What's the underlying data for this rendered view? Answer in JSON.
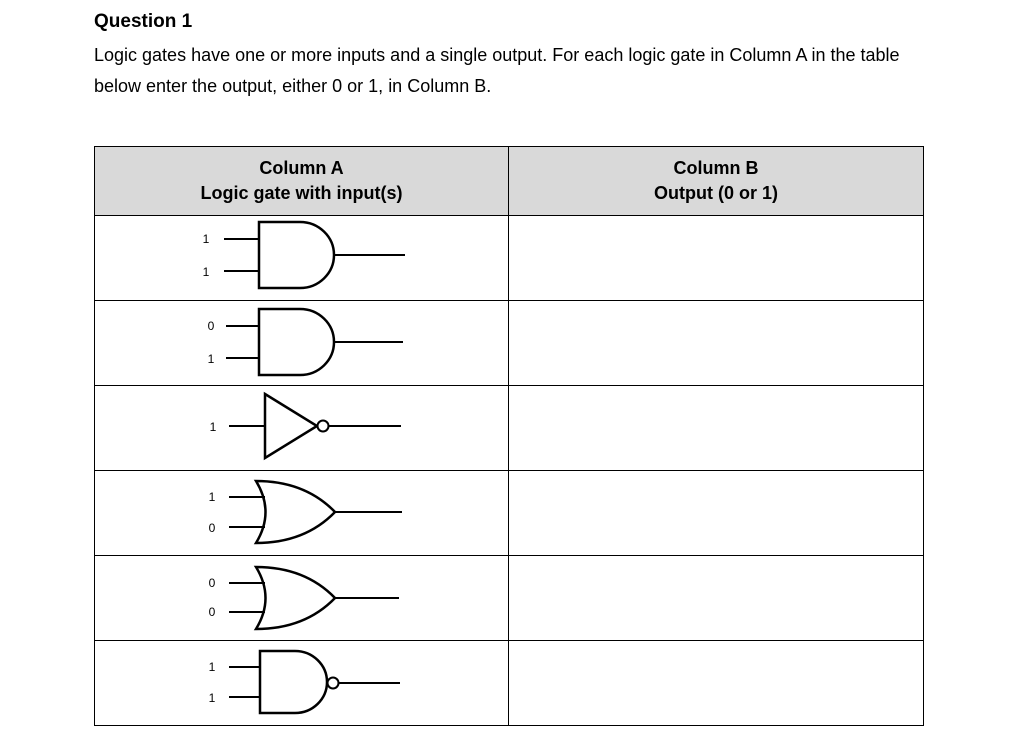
{
  "question": {
    "title": "Question 1",
    "text": "Logic gates have one or more inputs and a single output. For each logic gate in Column A in the table below enter the output, either 0 or 1, in Column B."
  },
  "table": {
    "column_a": {
      "title": "Column A",
      "subtitle": "Logic gate with input(s)"
    },
    "column_b": {
      "title": "Column B",
      "subtitle": "Output (0 or 1)"
    },
    "rows": [
      {
        "gate": "and-gate",
        "inputs": [
          "1",
          "1"
        ],
        "output": ""
      },
      {
        "gate": "and-gate",
        "inputs": [
          "0",
          "1"
        ],
        "output": ""
      },
      {
        "gate": "not-gate",
        "inputs": [
          "1"
        ],
        "output": ""
      },
      {
        "gate": "or-gate",
        "inputs": [
          "1",
          "0"
        ],
        "output": ""
      },
      {
        "gate": "or-gate",
        "inputs": [
          "0",
          "0"
        ],
        "output": ""
      },
      {
        "gate": "nand-gate",
        "inputs": [
          "1",
          "1"
        ],
        "output": ""
      }
    ]
  }
}
